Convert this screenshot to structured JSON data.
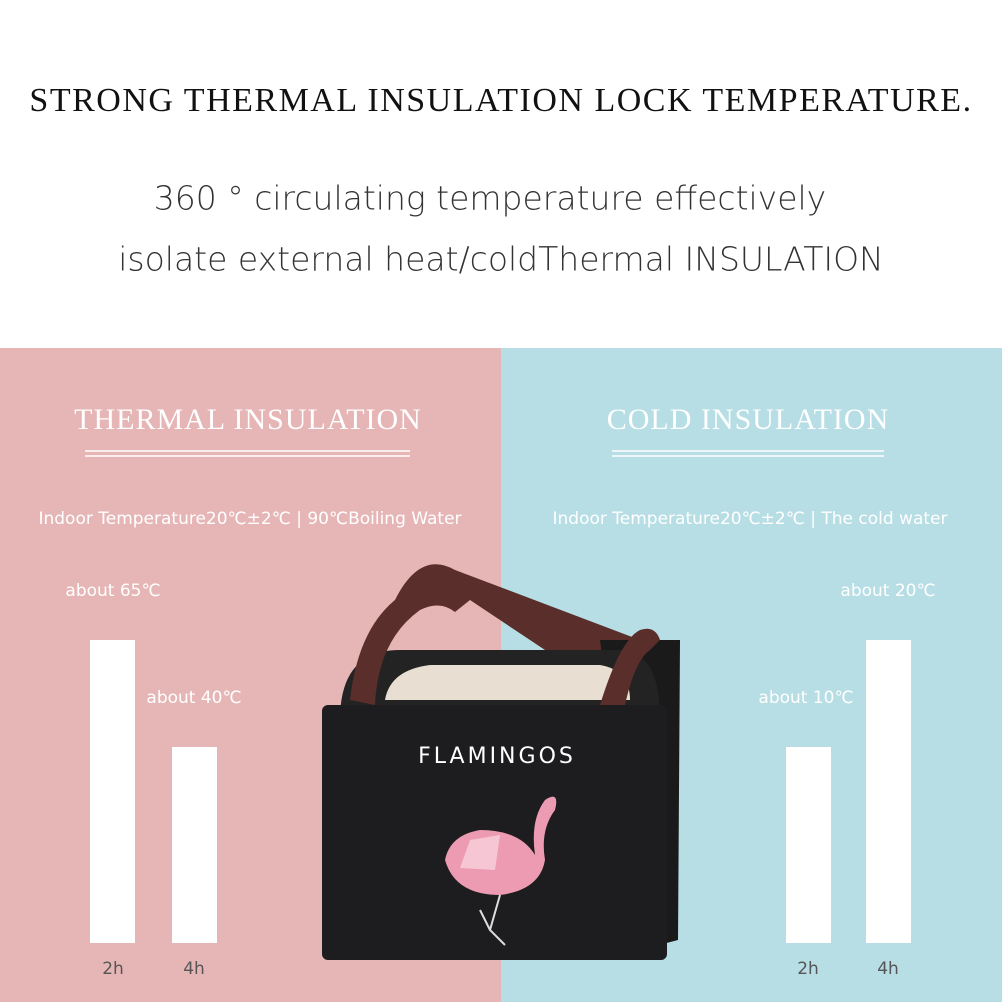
{
  "header": {
    "title": "STRONG THERMAL INSULATION LOCK TEMPERATURE.",
    "subtitle_lines": [
      "360 ° circulating temperature effectively",
      "isolate external heat/coldThermal INSULATION"
    ]
  },
  "panels": [
    {
      "title": "THERMAL INSULATION",
      "condition": "Indoor Temperature20℃±2℃ | 90℃Boiling Water",
      "bars": [
        {
          "label": "about 65℃",
          "time": "2h"
        },
        {
          "label": "about 40℃",
          "time": "4h"
        }
      ]
    },
    {
      "title": "COLD INSULATION",
      "condition": "Indoor Temperature20℃±2℃ | The cold water",
      "bars": [
        {
          "label": "about 10℃",
          "time": "2h"
        },
        {
          "label": "about 20℃",
          "time": "4h"
        }
      ]
    }
  ],
  "product": {
    "label": "FLAMINGOS"
  }
}
